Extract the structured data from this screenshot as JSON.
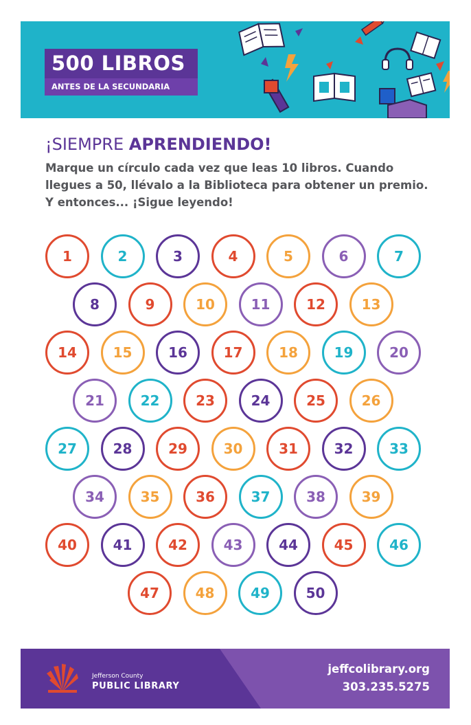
{
  "header": {
    "title": "500 LIBROS",
    "subtitle": "ANTES DE LA SECUNDARIA",
    "background_color": "#1fb3c9"
  },
  "headline": {
    "regular": "¡SIEMPRE ",
    "bold": "APRENDIENDO!"
  },
  "intro": "Marque un círculo cada vez que leas 10 libros. Cuando llegues a 50, llévalo a la Biblioteca para obtener un premio. Y entonces... ¡Sigue leyendo!",
  "colors": {
    "red": "#e04a2f",
    "teal": "#1fb3c9",
    "purple": "#5b3597",
    "orange": "#f4a23c",
    "lavender": "#8a5fb5"
  },
  "circles": [
    {
      "n": "1",
      "color": "red"
    },
    {
      "n": "2",
      "color": "teal"
    },
    {
      "n": "3",
      "color": "purple"
    },
    {
      "n": "4",
      "color": "red"
    },
    {
      "n": "5",
      "color": "orange"
    },
    {
      "n": "6",
      "color": "lavender"
    },
    {
      "n": "7",
      "color": "teal"
    },
    {
      "n": "8",
      "color": "purple"
    },
    {
      "n": "9",
      "color": "red"
    },
    {
      "n": "10",
      "color": "orange"
    },
    {
      "n": "11",
      "color": "lavender"
    },
    {
      "n": "12",
      "color": "red"
    },
    {
      "n": "13",
      "color": "orange"
    },
    {
      "n": "14",
      "color": "red"
    },
    {
      "n": "15",
      "color": "orange"
    },
    {
      "n": "16",
      "color": "purple"
    },
    {
      "n": "17",
      "color": "red"
    },
    {
      "n": "18",
      "color": "orange"
    },
    {
      "n": "19",
      "color": "teal"
    },
    {
      "n": "20",
      "color": "lavender"
    },
    {
      "n": "21",
      "color": "lavender"
    },
    {
      "n": "22",
      "color": "teal"
    },
    {
      "n": "23",
      "color": "red"
    },
    {
      "n": "24",
      "color": "purple"
    },
    {
      "n": "25",
      "color": "red"
    },
    {
      "n": "26",
      "color": "orange"
    },
    {
      "n": "27",
      "color": "teal"
    },
    {
      "n": "28",
      "color": "purple"
    },
    {
      "n": "29",
      "color": "red"
    },
    {
      "n": "30",
      "color": "orange"
    },
    {
      "n": "31",
      "color": "red"
    },
    {
      "n": "32",
      "color": "purple"
    },
    {
      "n": "33",
      "color": "teal"
    },
    {
      "n": "34",
      "color": "lavender"
    },
    {
      "n": "35",
      "color": "orange"
    },
    {
      "n": "36",
      "color": "red"
    },
    {
      "n": "37",
      "color": "teal"
    },
    {
      "n": "38",
      "color": "lavender"
    },
    {
      "n": "39",
      "color": "orange"
    },
    {
      "n": "40",
      "color": "red"
    },
    {
      "n": "41",
      "color": "purple"
    },
    {
      "n": "42",
      "color": "red"
    },
    {
      "n": "43",
      "color": "lavender"
    },
    {
      "n": "44",
      "color": "purple"
    },
    {
      "n": "45",
      "color": "red"
    },
    {
      "n": "46",
      "color": "teal"
    },
    {
      "n": "47",
      "color": "red"
    },
    {
      "n": "48",
      "color": "orange"
    },
    {
      "n": "49",
      "color": "teal"
    },
    {
      "n": "50",
      "color": "purple"
    }
  ],
  "footer": {
    "org_small": "Jefferson County",
    "org_big": "PUBLIC LIBRARY",
    "website": "jeffcolibrary.org",
    "phone": "303.235.5275",
    "logo_icon": "library-sunburst-icon"
  }
}
